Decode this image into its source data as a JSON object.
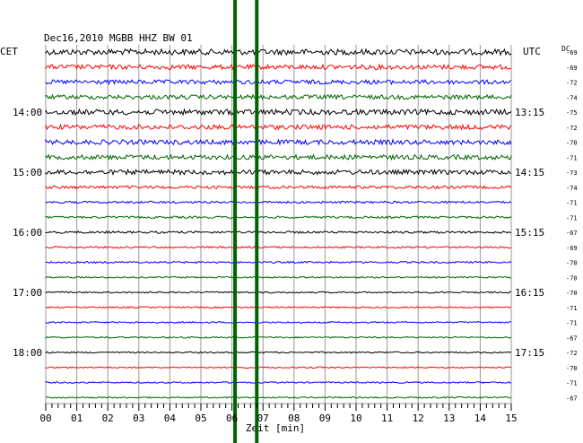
{
  "chart_data": {
    "type": "line",
    "title": "Dec16,2010   MGBB HHZ BW 01",
    "xlabel": "Zeit [min]",
    "left_axis_label": "CET",
    "right_axis_label": "UTC",
    "dc_header": "DC",
    "xlim": [
      0,
      15
    ],
    "x_ticks": [
      "00",
      "01",
      "02",
      "03",
      "04",
      "05",
      "06",
      "07",
      "08",
      "09",
      "10",
      "11",
      "12",
      "13",
      "14",
      "15"
    ],
    "grid": true,
    "trace_colors": [
      "#000000",
      "#ff0000",
      "#0000ff",
      "#006400"
    ],
    "traces": [
      {
        "dc": "-69",
        "amp": 3.2
      },
      {
        "dc": "-69",
        "amp": 2.6
      },
      {
        "dc": "-72",
        "amp": 2.4
      },
      {
        "dc": "-74",
        "amp": 2.4
      },
      {
        "dc": "-75",
        "amp": 3.0
      },
      {
        "dc": "-72",
        "amp": 2.6
      },
      {
        "dc": "-70",
        "amp": 2.6
      },
      {
        "dc": "-71",
        "amp": 2.6
      },
      {
        "dc": "-73",
        "amp": 2.6
      },
      {
        "dc": "-74",
        "amp": 1.6
      },
      {
        "dc": "-71",
        "amp": 1.2
      },
      {
        "dc": "-71",
        "amp": 1.2
      },
      {
        "dc": "-67",
        "amp": 1.2
      },
      {
        "dc": "-69",
        "amp": 1.0
      },
      {
        "dc": "-70",
        "amp": 1.0
      },
      {
        "dc": "-70",
        "amp": 0.8
      },
      {
        "dc": "-70",
        "amp": 0.8
      },
      {
        "dc": "-71",
        "amp": 0.8
      },
      {
        "dc": "-71",
        "amp": 0.8
      },
      {
        "dc": "-67",
        "amp": 0.8
      },
      {
        "dc": "-72",
        "amp": 0.8
      },
      {
        "dc": "-70",
        "amp": 0.8
      },
      {
        "dc": "-71",
        "amp": 0.8
      },
      {
        "dc": "-67",
        "amp": 0.8
      }
    ],
    "hour_labels": [
      {
        "row": 4,
        "cet": "14:00",
        "utc": "13:15"
      },
      {
        "row": 8,
        "cet": "15:00",
        "utc": "14:15"
      },
      {
        "row": 12,
        "cet": "16:00",
        "utc": "15:15"
      },
      {
        "row": 16,
        "cet": "17:00",
        "utc": "16:15"
      },
      {
        "row": 20,
        "cet": "18:00",
        "utc": "17:15"
      }
    ],
    "event_markers": [
      {
        "x": 6.1,
        "color": "#006400"
      },
      {
        "x": 6.8,
        "color": "#006400"
      }
    ]
  }
}
